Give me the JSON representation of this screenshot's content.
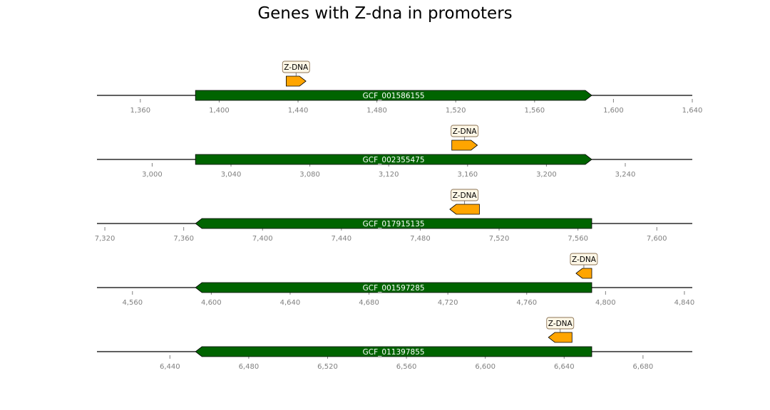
{
  "chart_data": {
    "type": "gene-track",
    "title": "Genes with Z-dna in promoters",
    "colors": {
      "gene": "#006400",
      "feature": "#FFA500",
      "feature_label_box": "#FFF8E7",
      "feature_label_border": "#8B7355",
      "axis_line": "#000000",
      "tick": "#808080"
    },
    "tracks": [
      {
        "xlim": [
          1338,
          1640
        ],
        "ticks": [
          1360,
          1400,
          1440,
          1480,
          1520,
          1560,
          1600,
          1640
        ],
        "tick_labels": [
          "1,360",
          "1,400",
          "1,440",
          "1,480",
          "1,520",
          "1,560",
          "1,600",
          "1,640"
        ],
        "gene": {
          "name": "GCF_001586155",
          "start": 1388,
          "end": 1589,
          "strand": 1
        },
        "feature": {
          "label": "Z-DNA",
          "start": 1434,
          "end": 1444,
          "strand": 1
        }
      },
      {
        "xlim": [
          2972,
          3274
        ],
        "ticks": [
          3000,
          3040,
          3080,
          3120,
          3160,
          3200,
          3240
        ],
        "tick_labels": [
          "3,000",
          "3,040",
          "3,080",
          "3,120",
          "3,160",
          "3,200",
          "3,240"
        ],
        "gene": {
          "name": "GCF_002355475",
          "start": 3022,
          "end": 3223,
          "strand": 1
        },
        "feature": {
          "label": "Z-DNA",
          "start": 3152,
          "end": 3165,
          "strand": 1
        }
      },
      {
        "xlim": [
          7316,
          7618
        ],
        "ticks": [
          7320,
          7360,
          7400,
          7440,
          7480,
          7520,
          7560,
          7600
        ],
        "tick_labels": [
          "7,320",
          "7,360",
          "7,400",
          "7,440",
          "7,480",
          "7,520",
          "7,560",
          "7,600"
        ],
        "gene": {
          "name": "GCF_017915135",
          "start": 7366,
          "end": 7567,
          "strand": -1
        },
        "feature": {
          "label": "Z-DNA",
          "start": 7495,
          "end": 7510,
          "strand": -1
        }
      },
      {
        "xlim": [
          4542,
          4844
        ],
        "ticks": [
          4560,
          4600,
          4640,
          4680,
          4720,
          4760,
          4800,
          4840
        ],
        "tick_labels": [
          "4,560",
          "4,600",
          "4,640",
          "4,680",
          "4,720",
          "4,760",
          "4,800",
          "4,840"
        ],
        "gene": {
          "name": "GCF_001597285",
          "start": 4592,
          "end": 4793,
          "strand": -1
        },
        "feature": {
          "label": "Z-DNA",
          "start": 4785,
          "end": 4793,
          "strand": -1
        }
      },
      {
        "xlim": [
          6403,
          6705
        ],
        "ticks": [
          6440,
          6480,
          6520,
          6560,
          6600,
          6640,
          6680
        ],
        "tick_labels": [
          "6,440",
          "6,480",
          "6,520",
          "6,560",
          "6,600",
          "6,640",
          "6,680"
        ],
        "gene": {
          "name": "GCF_011397855",
          "start": 6453,
          "end": 6654,
          "strand": -1
        },
        "feature": {
          "label": "Z-DNA",
          "start": 6632,
          "end": 6644,
          "strand": -1
        }
      }
    ]
  }
}
